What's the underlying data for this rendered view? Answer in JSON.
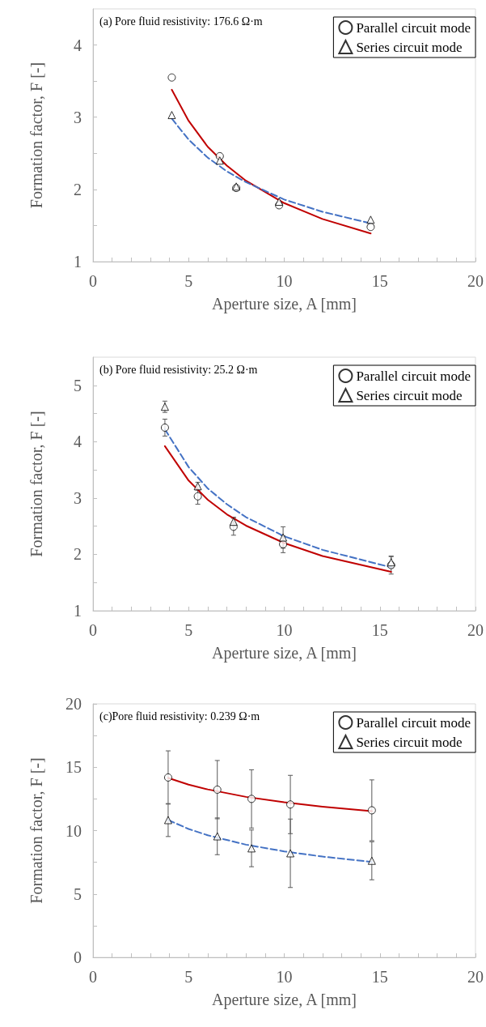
{
  "chart_data": [
    {
      "type": "scatter",
      "xlabel": "Aperture size, A [mm]",
      "ylabel": "Formation factor, F [-]",
      "annotations": [
        "(a) Pore fluid resistivity: 176.6 Ω·m"
      ],
      "xlim": [
        0,
        20
      ],
      "ylim": [
        1,
        4.5
      ],
      "xticks": [
        0,
        {
          "value": 1,
          "label": null
        },
        {
          "value": 2,
          "label": null
        },
        {
          "value": 3,
          "label": null
        },
        {
          "value": 4,
          "label": null
        },
        5,
        {
          "value": 6,
          "label": null
        },
        {
          "value": 7,
          "label": null
        },
        {
          "value": 8,
          "label": null
        },
        {
          "value": 9,
          "label": null
        },
        10,
        {
          "value": 11,
          "label": null
        },
        {
          "value": 12,
          "label": null
        },
        {
          "value": 13,
          "label": null
        },
        {
          "value": 14,
          "label": null
        },
        15,
        {
          "value": 16,
          "label": null
        },
        {
          "value": 17,
          "label": null
        },
        {
          "value": 18,
          "label": null
        },
        {
          "value": 19,
          "label": null
        },
        20
      ],
      "yticks": [
        1,
        {
          "value": 1.5,
          "label": null
        },
        2,
        {
          "value": 2.5,
          "label": null
        },
        3,
        {
          "value": 3.5,
          "label": null
        },
        4
      ],
      "grid": false,
      "legend": "top right",
      "series": [
        {
          "name": "Parallel circuit mode",
          "marker": "circle",
          "color": "#000000",
          "x": [
            4.12,
            6.63,
            7.49,
            9.73,
            14.52
          ],
          "values": [
            3.55,
            2.46,
            2.02,
            1.78,
            1.48
          ]
        },
        {
          "name": "Series circuit mode",
          "marker": "triangle",
          "color": "#000000",
          "x": [
            4.12,
            6.63,
            7.49,
            9.73,
            14.52
          ],
          "values": [
            3.03,
            2.4,
            2.04,
            1.83,
            1.58
          ]
        },
        {
          "type": "line",
          "marker": "none",
          "line_style": "solid",
          "color": "#c00000",
          "x": [
            4.12,
            5,
            6,
            7,
            8,
            10,
            12,
            14.52
          ],
          "values": [
            3.38,
            2.95,
            2.59,
            2.33,
            2.12,
            1.81,
            1.59,
            1.39
          ]
        },
        {
          "type": "line",
          "marker": "none",
          "line_style": "dashed",
          "color": "#4472c4",
          "x": [
            4.12,
            5,
            6,
            7,
            8,
            10,
            12,
            14.52
          ],
          "values": [
            2.98,
            2.69,
            2.44,
            2.25,
            2.1,
            1.86,
            1.69,
            1.53
          ]
        }
      ]
    },
    {
      "type": "scatter",
      "xlabel": "Aperture size, A [mm]",
      "ylabel": "Formation factor, F [-]",
      "annotations": [
        "(b) Pore fluid resistivity: 25.2 Ω·m"
      ],
      "xlim": [
        0,
        20
      ],
      "ylim": [
        1,
        5.5
      ],
      "xticks": [
        0,
        {
          "value": 1,
          "label": null
        },
        {
          "value": 2,
          "label": null
        },
        {
          "value": 3,
          "label": null
        },
        {
          "value": 4,
          "label": null
        },
        5,
        {
          "value": 6,
          "label": null
        },
        {
          "value": 7,
          "label": null
        },
        {
          "value": 8,
          "label": null
        },
        {
          "value": 9,
          "label": null
        },
        10,
        {
          "value": 11,
          "label": null
        },
        {
          "value": 12,
          "label": null
        },
        {
          "value": 13,
          "label": null
        },
        {
          "value": 14,
          "label": null
        },
        15,
        {
          "value": 16,
          "label": null
        },
        {
          "value": 17,
          "label": null
        },
        {
          "value": 18,
          "label": null
        },
        {
          "value": 19,
          "label": null
        },
        20
      ],
      "yticks": [
        1,
        {
          "value": 1.5,
          "label": null
        },
        2,
        {
          "value": 2.5,
          "label": null
        },
        3,
        {
          "value": 3.5,
          "label": null
        },
        4,
        {
          "value": 4.5,
          "label": null
        },
        5
      ],
      "grid": false,
      "legend": "top right",
      "series": [
        {
          "name": "Parallel circuit mode",
          "marker": "circle",
          "color": "#000000",
          "x": [
            3.76,
            5.48,
            7.35,
            9.94,
            15.59
          ],
          "values": [
            4.25,
            3.03,
            2.49,
            2.18,
            1.81
          ],
          "errors": [
            0.15,
            0.14,
            0.15,
            0.15,
            0.16
          ]
        },
        {
          "name": "Series circuit mode",
          "marker": "triangle",
          "color": "#000000",
          "x": [
            3.76,
            5.48,
            7.35,
            9.94,
            15.59
          ],
          "values": [
            4.62,
            3.21,
            2.58,
            2.3,
            1.86
          ],
          "errors": [
            0.1,
            0.07,
            0.08,
            0.19,
            0.1
          ]
        },
        {
          "type": "line",
          "marker": "none",
          "line_style": "solid",
          "color": "#c00000",
          "x": [
            3.76,
            5,
            6,
            7,
            8,
            10,
            12,
            15.59
          ],
          "values": [
            3.92,
            3.31,
            2.97,
            2.71,
            2.51,
            2.2,
            1.97,
            1.69
          ]
        },
        {
          "type": "line",
          "marker": "none",
          "line_style": "dashed",
          "color": "#4472c4",
          "x": [
            3.76,
            5,
            6,
            7,
            8,
            10,
            12,
            15.59
          ],
          "values": [
            4.22,
            3.55,
            3.17,
            2.89,
            2.66,
            2.32,
            2.08,
            1.77
          ]
        }
      ]
    },
    {
      "type": "scatter",
      "xlabel": "Aperture size, A [mm]",
      "ylabel": "Formation factor, F [-]",
      "annotations": [
        "(c)Pore fluid resistivity: 0.239 Ω·m"
      ],
      "xlim": [
        0,
        20
      ],
      "ylim": [
        0,
        20
      ],
      "xticks": [
        0,
        {
          "value": 1,
          "label": null
        },
        {
          "value": 2,
          "label": null
        },
        {
          "value": 3,
          "label": null
        },
        {
          "value": 4,
          "label": null
        },
        5,
        {
          "value": 6,
          "label": null
        },
        {
          "value": 7,
          "label": null
        },
        {
          "value": 8,
          "label": null
        },
        {
          "value": 9,
          "label": null
        },
        10,
        {
          "value": 11,
          "label": null
        },
        {
          "value": 12,
          "label": null
        },
        {
          "value": 13,
          "label": null
        },
        {
          "value": 14,
          "label": null
        },
        15,
        {
          "value": 16,
          "label": null
        },
        {
          "value": 17,
          "label": null
        },
        {
          "value": 18,
          "label": null
        },
        {
          "value": 19,
          "label": null
        },
        20
      ],
      "yticks": [
        0,
        {
          "value": 2.5,
          "label": null
        },
        5,
        {
          "value": 7.5,
          "label": null
        },
        10,
        {
          "value": 12.5,
          "label": null
        },
        15,
        {
          "value": 17.5,
          "label": null
        },
        20
      ],
      "grid": false,
      "legend": "top right",
      "series": [
        {
          "name": "Parallel circuit mode",
          "marker": "circle",
          "color": "#000000",
          "x": [
            3.93,
            6.5,
            8.29,
            10.32,
            14.58
          ],
          "values": [
            14.19,
            13.23,
            12.5,
            12.06,
            11.6
          ],
          "errors": [
            2.1,
            2.3,
            2.3,
            2.3,
            2.4
          ]
        },
        {
          "name": "Series circuit mode",
          "marker": "triangle",
          "color": "#000000",
          "x": [
            3.93,
            6.5,
            8.29,
            10.32,
            14.58
          ],
          "values": [
            10.83,
            9.55,
            8.6,
            8.21,
            7.62
          ],
          "errors": [
            1.3,
            1.45,
            1.45,
            2.7,
            1.5
          ]
        },
        {
          "type": "line",
          "marker": "none",
          "line_style": "solid",
          "color": "#c00000",
          "x": [
            3.93,
            5,
            6,
            8,
            10,
            12,
            14.58
          ],
          "values": [
            14.15,
            13.63,
            13.25,
            12.66,
            12.23,
            11.89,
            11.53
          ]
        },
        {
          "type": "line",
          "marker": "none",
          "line_style": "dashed",
          "color": "#4472c4",
          "x": [
            3.93,
            5,
            6,
            8,
            10,
            12,
            14.58
          ],
          "values": [
            10.83,
            10.13,
            9.63,
            8.89,
            8.36,
            7.95,
            7.53
          ]
        }
      ]
    }
  ]
}
